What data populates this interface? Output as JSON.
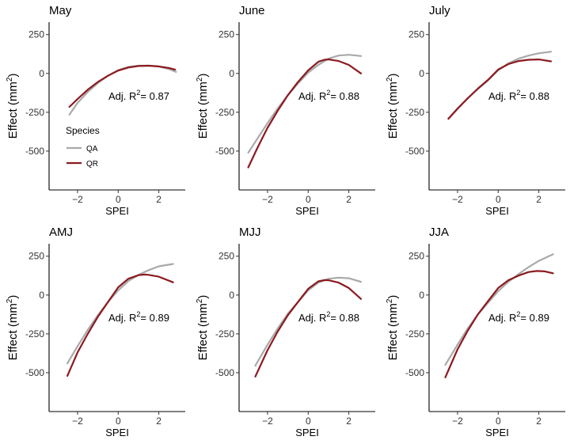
{
  "chart_data": [
    {
      "type": "line",
      "title": "May",
      "xlabel": "SPEI",
      "ylabel": "Effect (mm2)",
      "xlim": [
        -3.4,
        3.3
      ],
      "ylim": [
        -750,
        330
      ],
      "xticks": [
        -2,
        0,
        2
      ],
      "yticks": [
        250,
        0,
        -250,
        -500
      ],
      "annotation": {
        "base": "Adj. R",
        "sup": "2",
        "rest": "= 0.87"
      },
      "series": [
        {
          "name": "QA",
          "x": [
            -2.4,
            -2.0,
            -1.5,
            -1.0,
            -0.5,
            0.0,
            0.5,
            1.0,
            1.5,
            2.0,
            2.5,
            2.85
          ],
          "y": [
            -265,
            -190,
            -120,
            -62,
            -15,
            22,
            42,
            50,
            50,
            44,
            28,
            10
          ]
        },
        {
          "name": "QR",
          "x": [
            -2.4,
            -2.0,
            -1.5,
            -1.0,
            -0.5,
            0.0,
            0.5,
            1.0,
            1.5,
            2.0,
            2.5,
            2.8
          ],
          "y": [
            -215,
            -165,
            -105,
            -55,
            -15,
            18,
            38,
            48,
            50,
            45,
            35,
            25
          ]
        }
      ]
    },
    {
      "type": "line",
      "title": "June",
      "xlabel": "SPEI",
      "ylabel": "Effect (mm2)",
      "xlim": [
        -3.4,
        3.3
      ],
      "ylim": [
        -750,
        330
      ],
      "xticks": [
        -2,
        0,
        2
      ],
      "yticks": [
        250,
        0,
        -250,
        -500
      ],
      "annotation": {
        "base": "Adj. R",
        "sup": "2",
        "rest": "= 0.88"
      },
      "series": [
        {
          "name": "QA",
          "x": [
            -2.95,
            -2.5,
            -2.0,
            -1.5,
            -1.0,
            -0.5,
            0.0,
            0.5,
            1.0,
            1.5,
            2.0,
            2.6
          ],
          "y": [
            -510,
            -420,
            -320,
            -225,
            -140,
            -65,
            5,
            55,
            95,
            115,
            120,
            112
          ]
        },
        {
          "name": "QR",
          "x": [
            -2.95,
            -2.5,
            -2.0,
            -1.5,
            -1.0,
            -0.5,
            0.0,
            0.5,
            0.8,
            1.0,
            1.5,
            2.0,
            2.6
          ],
          "y": [
            -605,
            -480,
            -350,
            -240,
            -140,
            -55,
            20,
            75,
            88,
            90,
            80,
            55,
            0
          ]
        }
      ]
    },
    {
      "type": "line",
      "title": "July",
      "xlabel": "SPEI",
      "ylabel": "Effect (mm2)",
      "xlim": [
        -3.4,
        3.3
      ],
      "ylim": [
        -750,
        330
      ],
      "xticks": [
        -2,
        0,
        2
      ],
      "yticks": [
        250,
        0,
        -250,
        -500
      ],
      "annotation": {
        "base": "Adj. R",
        "sup": "2",
        "rest": "= 0.88"
      },
      "series": [
        {
          "name": "QA",
          "x": [
            -2.45,
            -2.0,
            -1.5,
            -1.0,
            -0.5,
            0.0,
            0.5,
            1.0,
            1.5,
            2.0,
            2.6
          ],
          "y": [
            -290,
            -225,
            -160,
            -100,
            -45,
            20,
            65,
            95,
            115,
            130,
            140
          ]
        },
        {
          "name": "QR",
          "x": [
            -2.45,
            -2.0,
            -1.5,
            -1.0,
            -0.5,
            0.0,
            0.5,
            1.0,
            1.5,
            2.0,
            2.6
          ],
          "y": [
            -292,
            -228,
            -160,
            -98,
            -42,
            25,
            60,
            80,
            88,
            90,
            78
          ]
        }
      ]
    },
    {
      "type": "line",
      "title": "AMJ",
      "xlabel": "SPEI",
      "ylabel": "Effect (mm2)",
      "xlim": [
        -3.4,
        3.3
      ],
      "ylim": [
        -750,
        330
      ],
      "xticks": [
        -2,
        0,
        2
      ],
      "yticks": [
        250,
        0,
        -250,
        -500
      ],
      "annotation": {
        "base": "Adj. R",
        "sup": "2",
        "rest": "= 0.89"
      },
      "series": [
        {
          "name": "QA",
          "x": [
            -2.5,
            -2.0,
            -1.5,
            -1.0,
            -0.5,
            0.0,
            0.5,
            1.0,
            1.5,
            2.0,
            2.7
          ],
          "y": [
            -440,
            -330,
            -225,
            -130,
            -45,
            30,
            90,
            130,
            160,
            185,
            200
          ]
        },
        {
          "name": "QR",
          "x": [
            -2.5,
            -2.0,
            -1.5,
            -1.0,
            -0.5,
            0.0,
            0.5,
            1.0,
            1.3,
            1.5,
            2.0,
            2.7
          ],
          "y": [
            -520,
            -370,
            -250,
            -140,
            -45,
            50,
            105,
            128,
            132,
            130,
            118,
            82
          ]
        }
      ]
    },
    {
      "type": "line",
      "title": "MJJ",
      "xlabel": "SPEI",
      "ylabel": "Effect (mm2)",
      "xlim": [
        -3.4,
        3.3
      ],
      "ylim": [
        -750,
        330
      ],
      "xticks": [
        -2,
        0,
        2
      ],
      "yticks": [
        250,
        0,
        -250,
        -500
      ],
      "annotation": {
        "base": "Adj. R",
        "sup": "2",
        "rest": "= 0.88"
      },
      "series": [
        {
          "name": "QA",
          "x": [
            -2.6,
            -2.0,
            -1.5,
            -1.0,
            -0.5,
            0.0,
            0.5,
            1.0,
            1.5,
            2.0,
            2.6
          ],
          "y": [
            -455,
            -320,
            -215,
            -120,
            -45,
            30,
            80,
            105,
            112,
            108,
            85
          ]
        },
        {
          "name": "QR",
          "x": [
            -2.6,
            -2.0,
            -1.5,
            -1.0,
            -0.5,
            0.0,
            0.5,
            0.8,
            1.0,
            1.5,
            2.0,
            2.6
          ],
          "y": [
            -525,
            -355,
            -235,
            -130,
            -45,
            40,
            88,
            96,
            95,
            80,
            45,
            -25
          ]
        }
      ]
    },
    {
      "type": "line",
      "title": "JJA",
      "xlabel": "SPEI",
      "ylabel": "Effect (mm2)",
      "xlim": [
        -3.4,
        3.3
      ],
      "ylim": [
        -750,
        330
      ],
      "xticks": [
        -2,
        0,
        2
      ],
      "yticks": [
        250,
        0,
        -250,
        -500
      ],
      "annotation": {
        "base": "Adj. R",
        "sup": "2",
        "rest": "= 0.89"
      },
      "series": [
        {
          "name": "QA",
          "x": [
            -2.6,
            -2.0,
            -1.5,
            -1.0,
            -0.5,
            0.0,
            0.5,
            1.0,
            1.5,
            2.0,
            2.7
          ],
          "y": [
            -450,
            -320,
            -215,
            -125,
            -50,
            25,
            85,
            135,
            180,
            220,
            262
          ]
        },
        {
          "name": "QR",
          "x": [
            -2.6,
            -2.0,
            -1.5,
            -1.0,
            -0.5,
            0.0,
            0.5,
            1.0,
            1.5,
            1.9,
            2.3,
            2.7
          ],
          "y": [
            -530,
            -350,
            -230,
            -125,
            -40,
            45,
            95,
            125,
            148,
            155,
            152,
            140
          ]
        }
      ]
    }
  ],
  "legend": {
    "title": "Species",
    "items": [
      {
        "name": "QA",
        "color": "#a9a9a9"
      },
      {
        "name": "QR",
        "color": "#8b1a1f"
      }
    ]
  },
  "colors": {
    "QA": "#a9a9a9",
    "QR": "#8b1a1f",
    "axis": "#000000",
    "tick_label": "#333333"
  }
}
